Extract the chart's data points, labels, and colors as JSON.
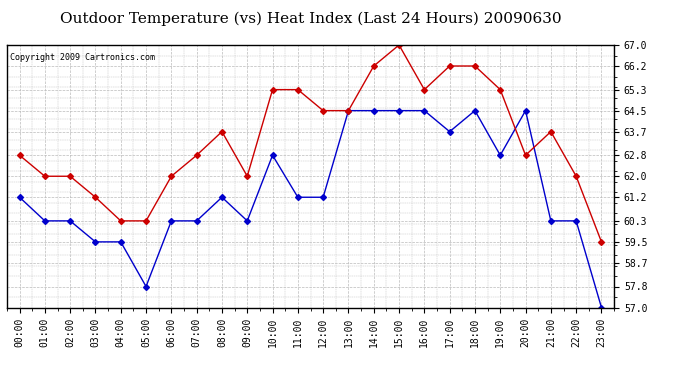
{
  "title": "Outdoor Temperature (vs) Heat Index (Last 24 Hours) 20090630",
  "copyright": "Copyright 2009 Cartronics.com",
  "hours": [
    "00:00",
    "01:00",
    "02:00",
    "03:00",
    "04:00",
    "05:00",
    "06:00",
    "07:00",
    "08:00",
    "09:00",
    "10:00",
    "11:00",
    "12:00",
    "13:00",
    "14:00",
    "15:00",
    "16:00",
    "17:00",
    "18:00",
    "19:00",
    "20:00",
    "21:00",
    "22:00",
    "23:00"
  ],
  "temp": [
    61.2,
    60.3,
    60.3,
    59.5,
    59.5,
    57.8,
    60.3,
    60.3,
    61.2,
    60.3,
    62.8,
    61.2,
    61.2,
    64.5,
    64.5,
    64.5,
    64.5,
    63.7,
    64.5,
    62.8,
    64.5,
    60.3,
    60.3,
    57.0
  ],
  "heat_index": [
    62.8,
    62.0,
    62.0,
    61.2,
    60.3,
    60.3,
    62.0,
    62.8,
    63.7,
    62.0,
    65.3,
    65.3,
    64.5,
    64.5,
    66.2,
    67.0,
    65.3,
    66.2,
    66.2,
    65.3,
    62.8,
    63.7,
    62.0,
    59.5
  ],
  "temp_color": "#0000CC",
  "heat_color": "#CC0000",
  "ylim_min": 57.0,
  "ylim_max": 67.0,
  "yticks": [
    57.0,
    57.8,
    58.7,
    59.5,
    60.3,
    61.2,
    62.0,
    62.8,
    63.7,
    64.5,
    65.3,
    66.2,
    67.0
  ],
  "bg_color": "#ffffff",
  "grid_color": "#bbbbbb",
  "title_fontsize": 11,
  "copyright_fontsize": 6,
  "tick_fontsize": 7
}
